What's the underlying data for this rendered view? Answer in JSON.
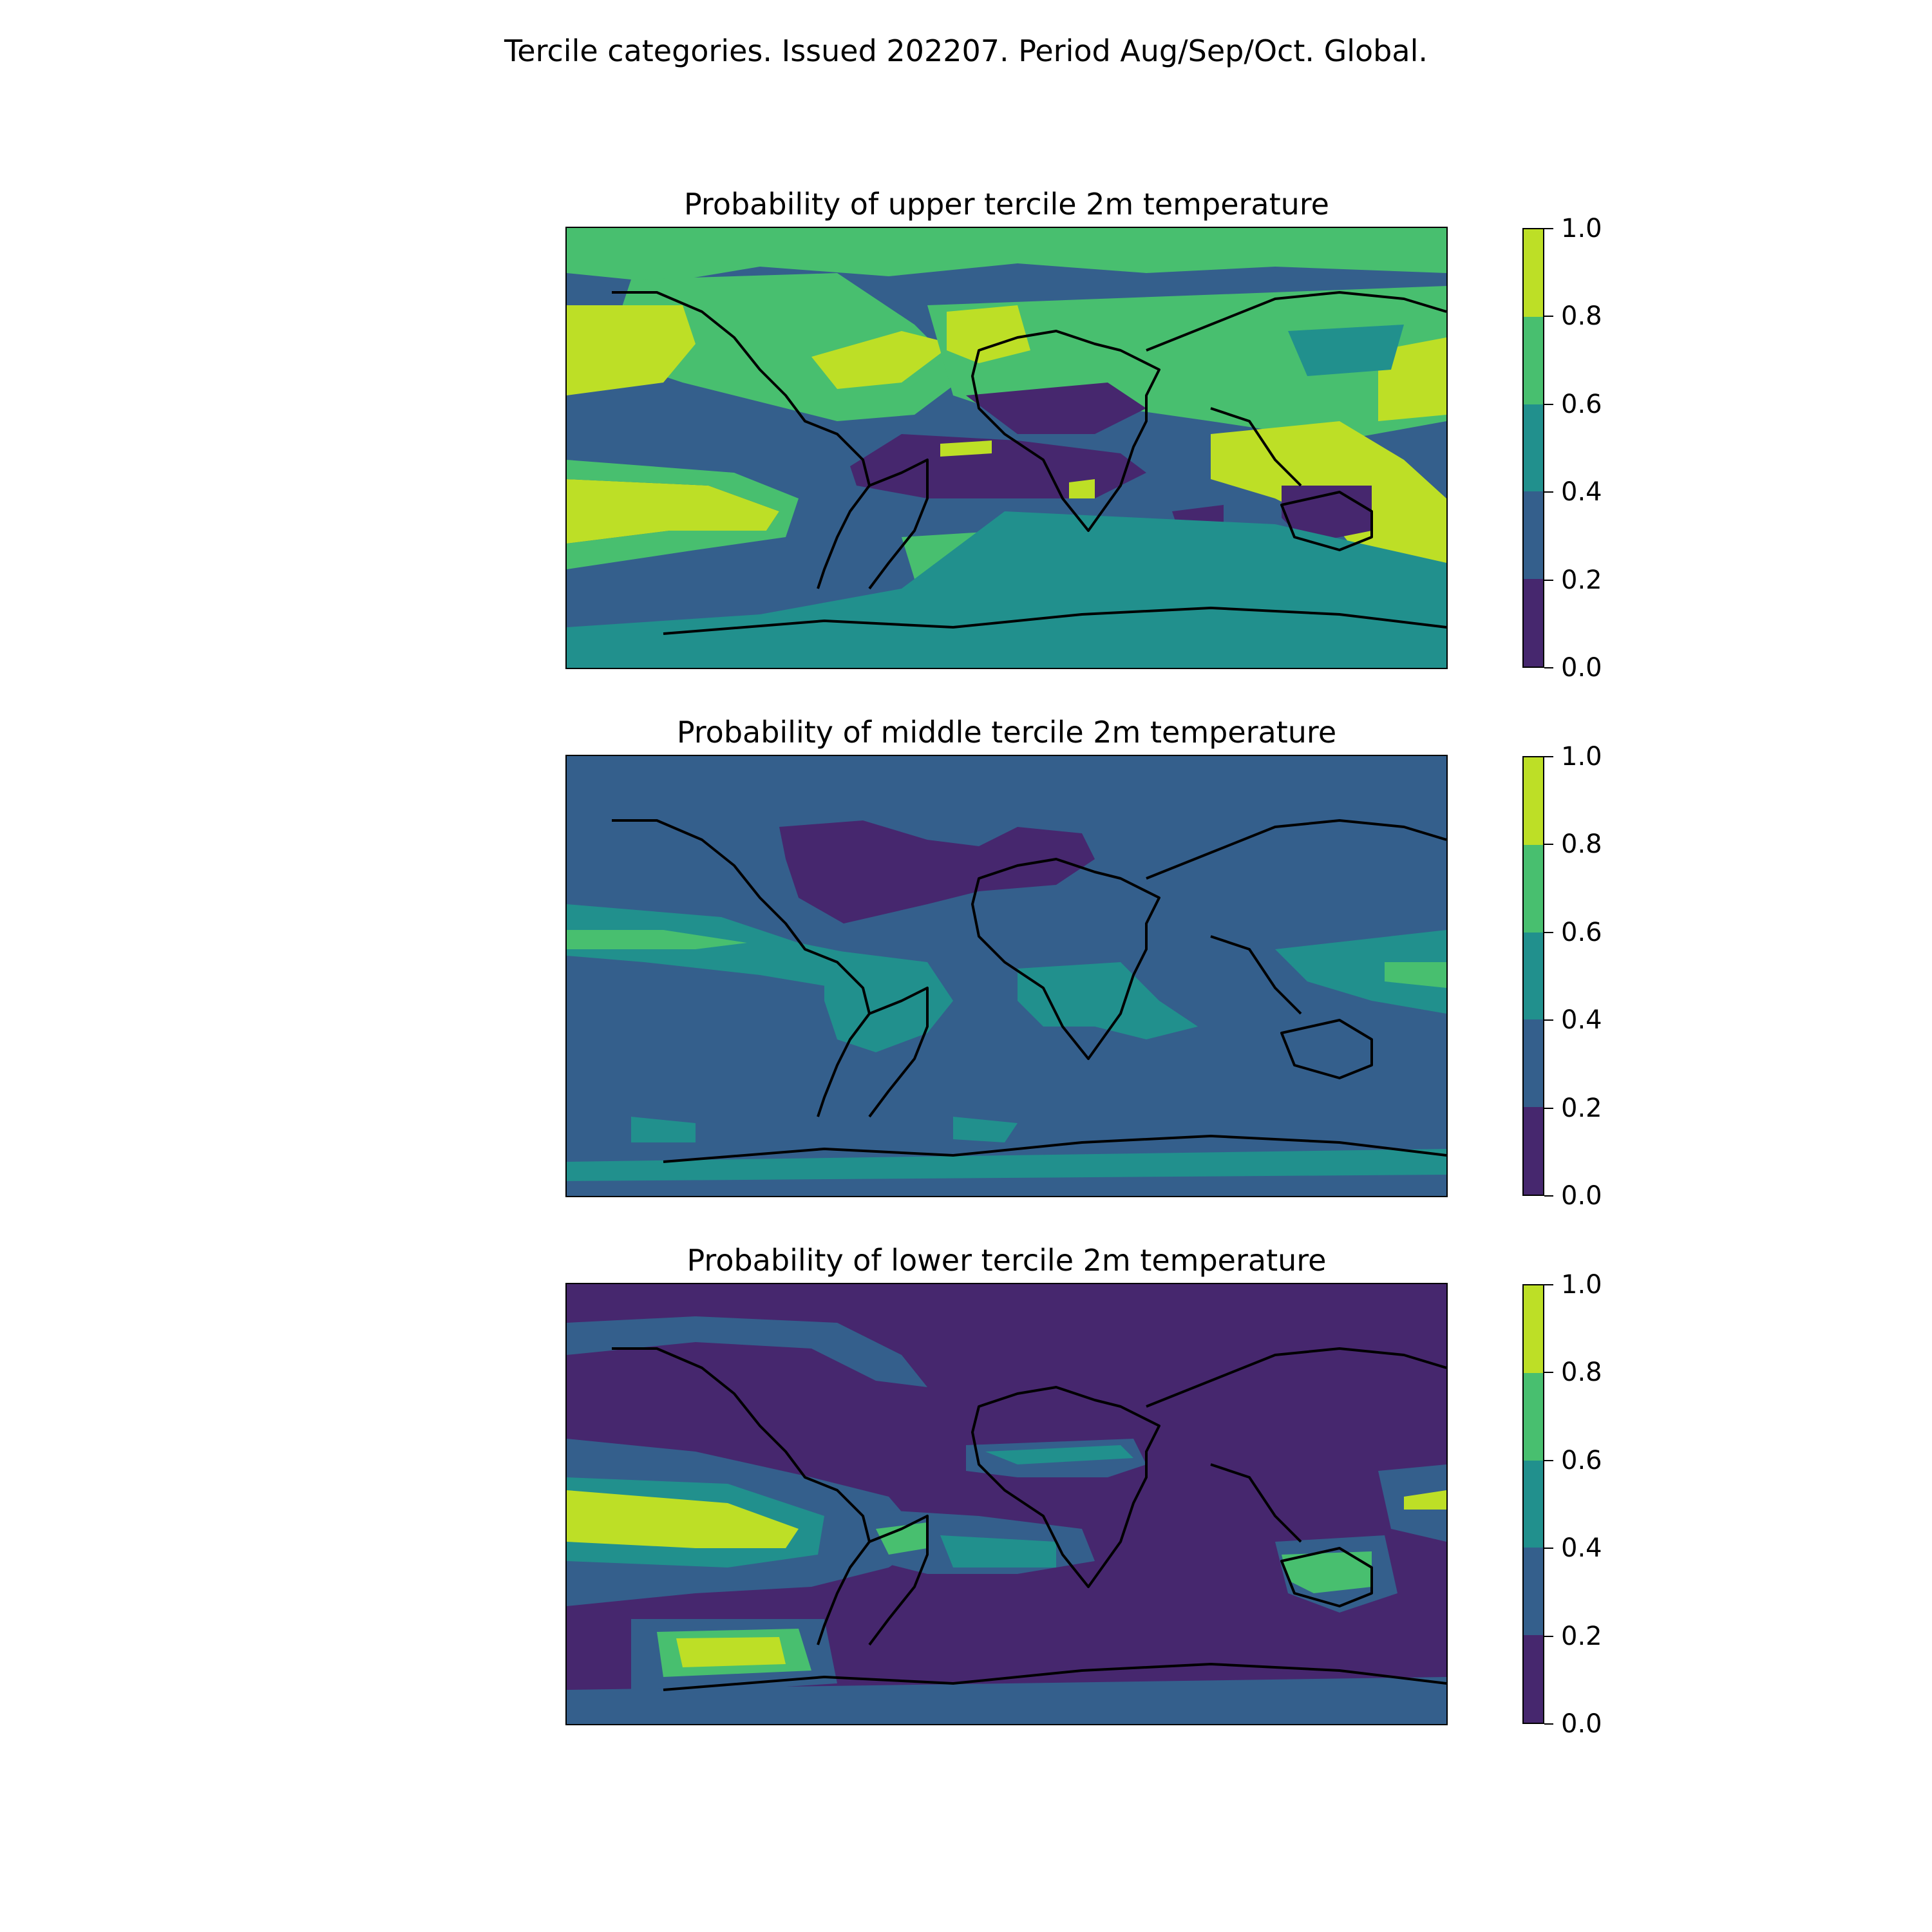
{
  "figure": {
    "title": "Tercile categories. Issued 202207. Period Aug/Sep/Oct. Global."
  },
  "colorbar": {
    "ticks": [
      "0.0",
      "0.2",
      "0.4",
      "0.6",
      "0.8",
      "1.0"
    ],
    "levels": [
      0.0,
      0.2,
      0.4,
      0.6,
      0.8,
      1.0
    ],
    "colors": [
      "#46276e",
      "#345f8c",
      "#21908d",
      "#48bf6f",
      "#bddf26"
    ]
  },
  "panels": [
    {
      "title": "Probability of upper tercile 2m temperature",
      "background_class": 1
    },
    {
      "title": "Probability of middle tercile 2m temperature",
      "background_class": 1
    },
    {
      "title": "Probability of lower tercile 2m temperature",
      "background_class": 0
    }
  ],
  "map_legend": {
    "coastline_color": "#000000",
    "projection": "equirectangular, global"
  }
}
